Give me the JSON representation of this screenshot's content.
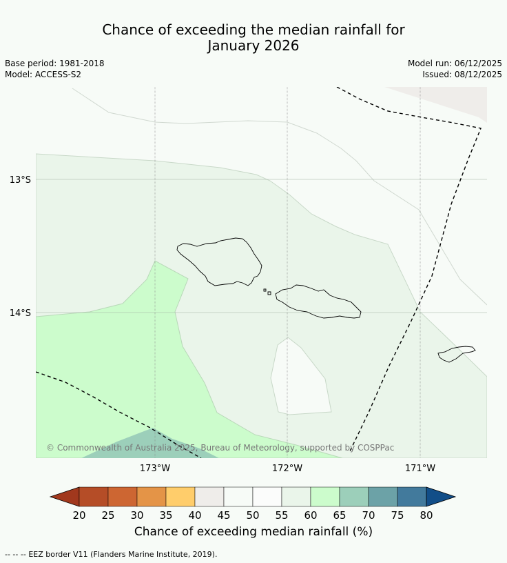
{
  "title": {
    "line1": "Chance of exceeding the median rainfall for",
    "line2": "January 2026"
  },
  "meta": {
    "base_period": "Base period: 1981-2018",
    "model": "Model: ACCESS-S2",
    "model_run": "Model run: 06/12/2025",
    "issued": "Issued: 08/12/2025"
  },
  "map": {
    "lat_labels": [
      "13°S",
      "14°S"
    ],
    "lon_labels": [
      "173°W",
      "172°W",
      "171°W"
    ],
    "copyright": "© Commonwealth of Australia 2025, Bureau of Meteorology, supported by COSPPac",
    "colors": {
      "ocean": "#f7fbf7",
      "class_40_45": "#efedea",
      "class_55_60": "#eaf5ea",
      "class_60_65": "#ccfccc",
      "class_65_70": "#9ccfba",
      "land_outline": "#000000"
    }
  },
  "colorbar": {
    "ticks": [
      "20",
      "25",
      "30",
      "35",
      "40",
      "45",
      "50",
      "55",
      "60",
      "65",
      "70",
      "75",
      "80"
    ],
    "colors": [
      "#a1381d",
      "#b54d27",
      "#cd6632",
      "#e49447",
      "#ffcd6b",
      "#efedea",
      "#f7fbf7",
      "#fbfcfb",
      "#eaf5ea",
      "#ccfccc",
      "#9ccfba",
      "#6ca2a7",
      "#427a9c",
      "#124e88"
    ],
    "label": "Chance of exceeding median rainfall (%)"
  },
  "legend": {
    "eez_marker": "--  --  --",
    "eez_text": "EEZ border V11 (Flanders Marine Institute, 2019)."
  }
}
